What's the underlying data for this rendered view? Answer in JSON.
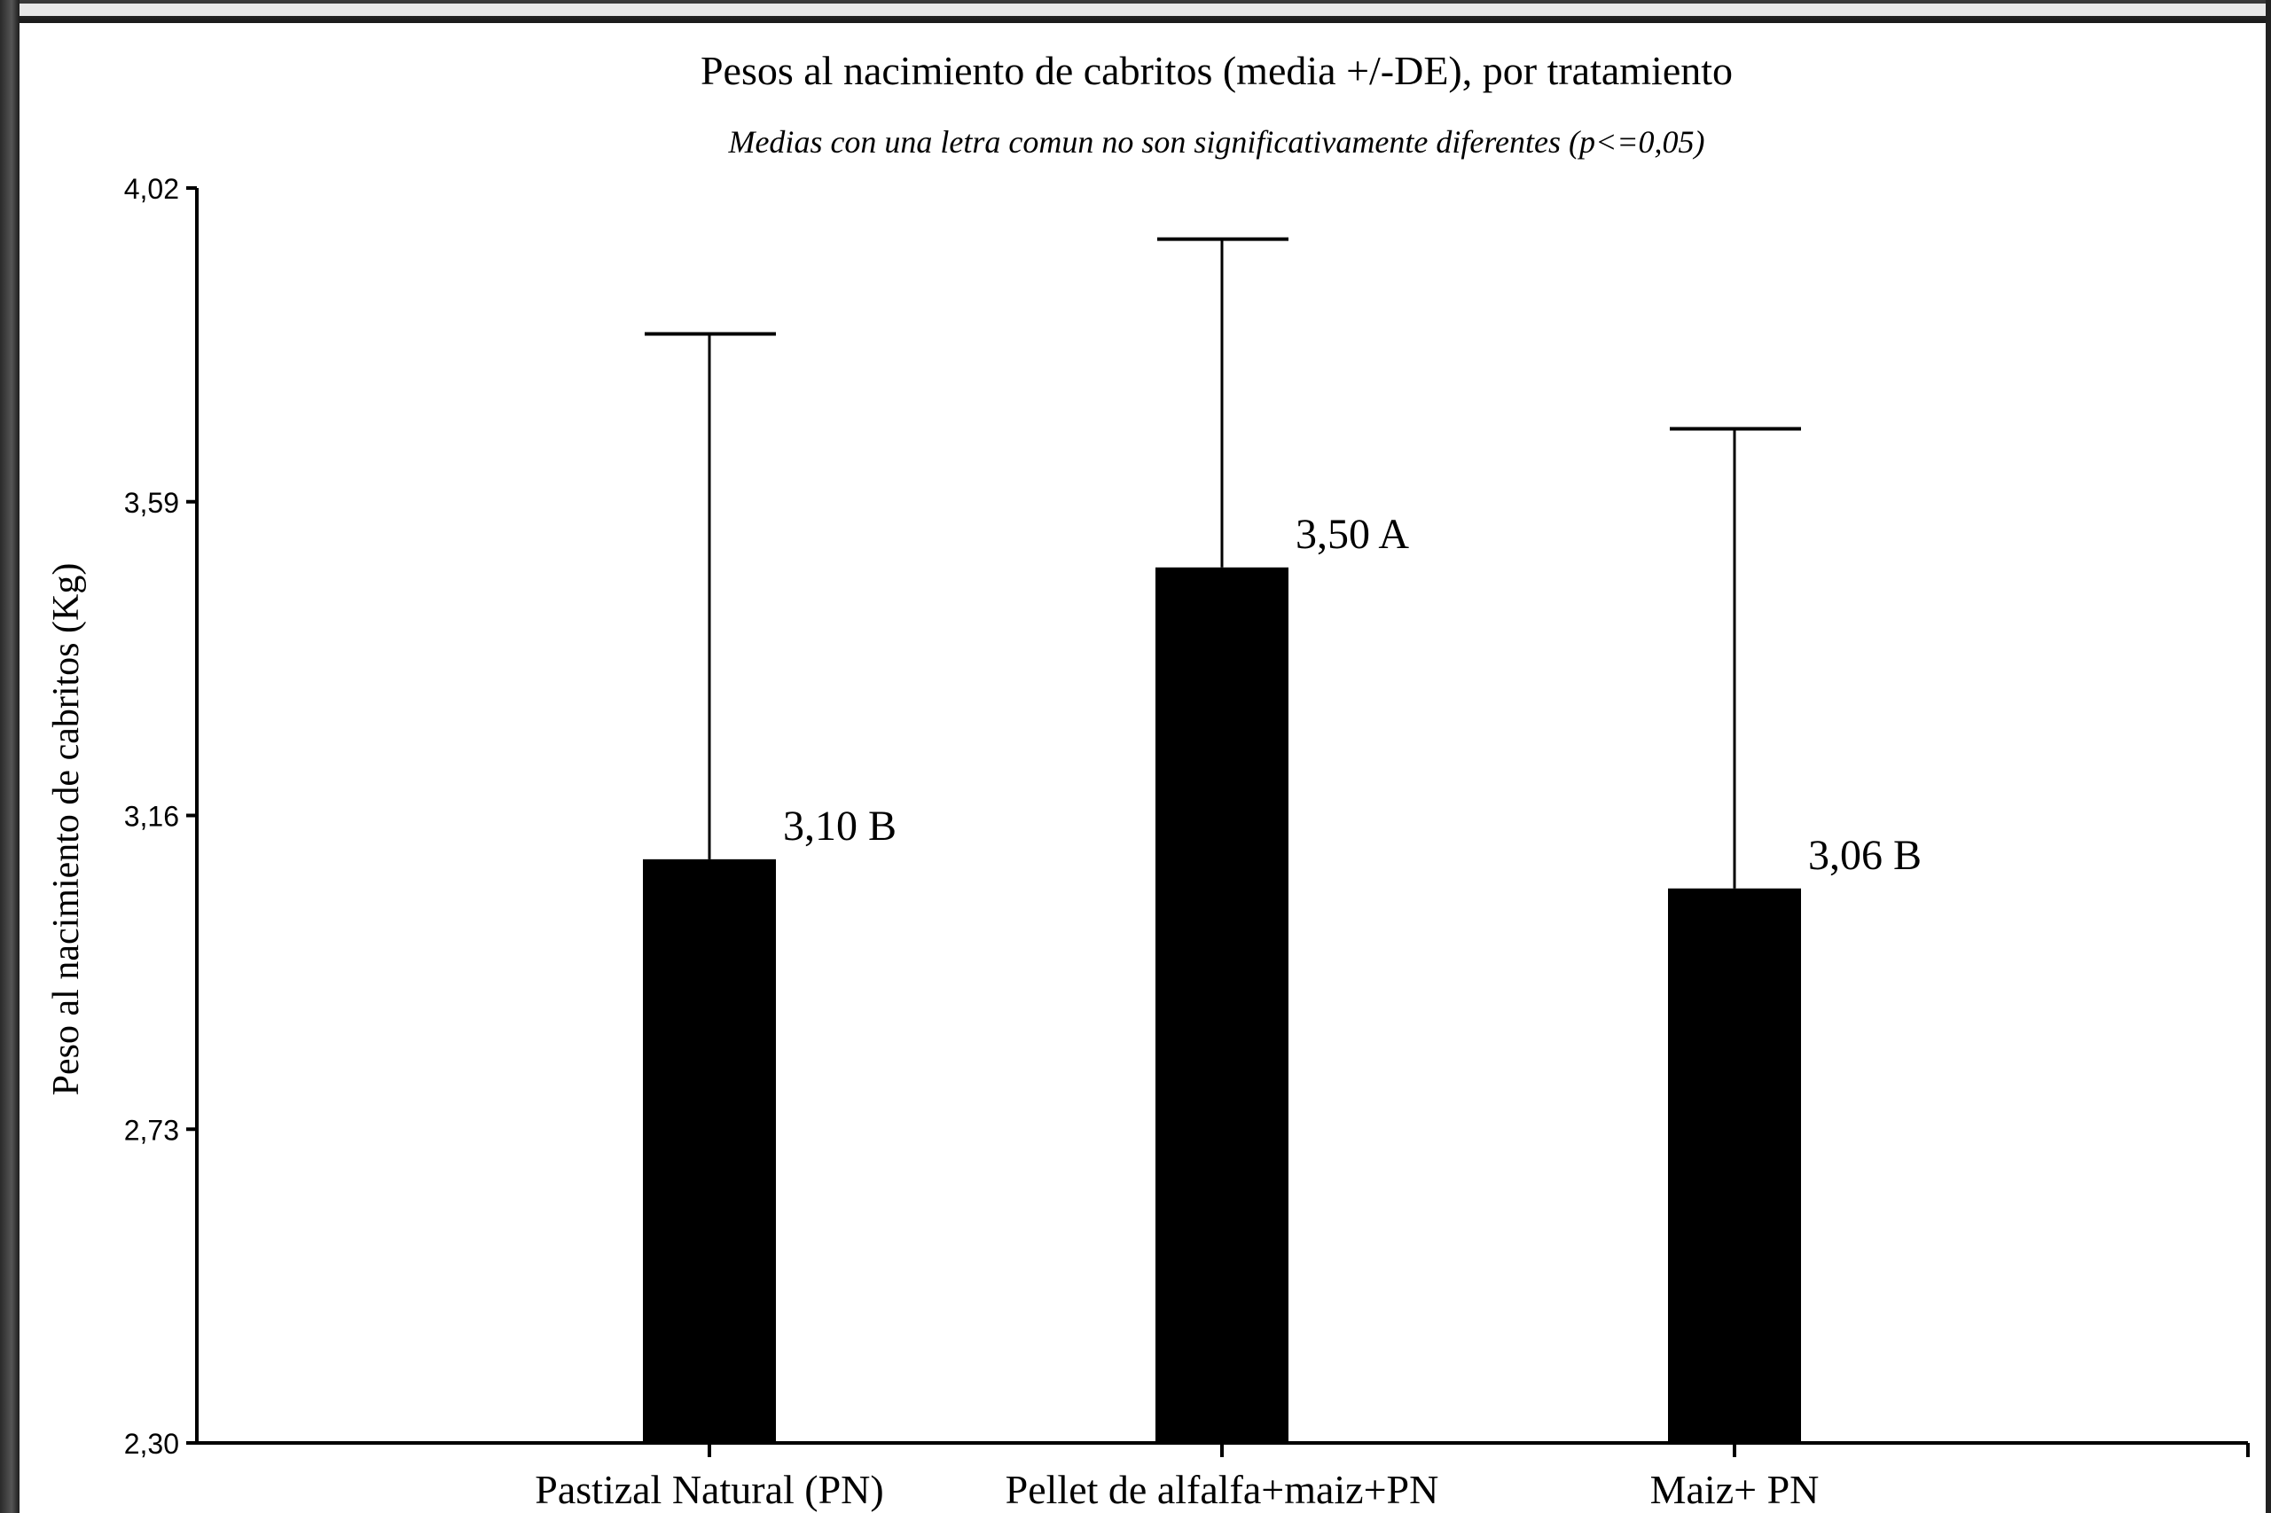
{
  "chart_data": {
    "type": "bar",
    "title": "Pesos al nacimiento de cabritos (media +/-DE), por tratamiento",
    "subtitle": "Medias con una letra comun no son significativamente diferentes (p<=0,05)",
    "ylabel": "Peso al nacimiento de cabritos (Kg)",
    "xlabel": "",
    "ylim": [
      2.3,
      4.02
    ],
    "yticks": [
      "4,02",
      "3,59",
      "3,16",
      "2,73",
      "2,30"
    ],
    "ytick_values": [
      4.02,
      3.59,
      3.16,
      2.73,
      2.3
    ],
    "categories": [
      "Pastizal Natural (PN)",
      "Pellet de alfalfa+maiz+PN",
      "Maiz+ PN"
    ],
    "values": [
      3.1,
      3.5,
      3.06
    ],
    "error_upper": [
      3.82,
      3.95,
      3.69
    ],
    "data_labels": [
      "3,10 B",
      "3,50 A",
      "3,06 B"
    ],
    "bar_color": "#000000",
    "grid": false,
    "legend": "none"
  }
}
